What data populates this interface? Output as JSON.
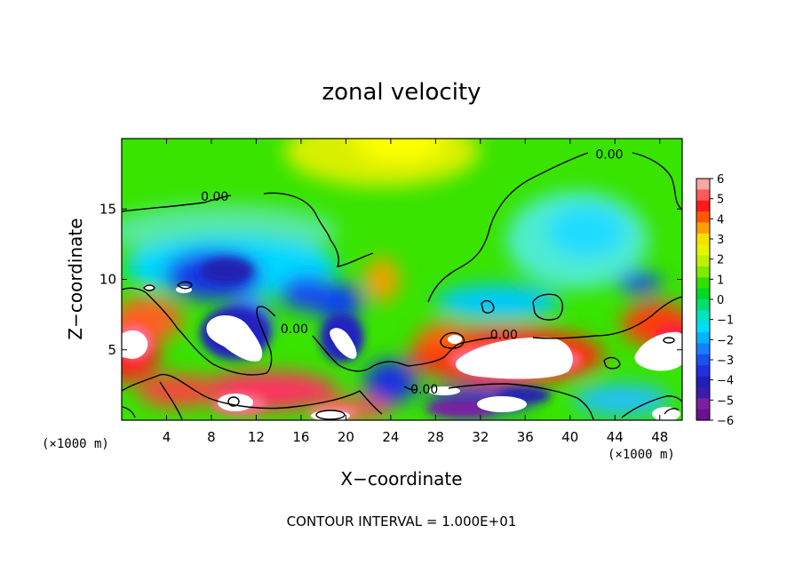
{
  "chart_data": {
    "type": "heatmap",
    "title": "zonal velocity",
    "xlabel": "X−coordinate",
    "ylabel": "Z−coordinate",
    "x_unit_left": "(×1000 m)",
    "x_unit_right": "(×1000 m)",
    "xlim": [
      0,
      50
    ],
    "ylim": [
      0,
      20
    ],
    "x_ticks": [
      4,
      8,
      12,
      16,
      20,
      24,
      28,
      32,
      36,
      40,
      44,
      48
    ],
    "y_ticks": [
      5,
      10,
      15
    ],
    "colorbar_ticks": [
      "6",
      "5",
      "4",
      "3",
      "2",
      "1",
      "0",
      "−1",
      "−2",
      "−3",
      "−4",
      "−5",
      "−6"
    ],
    "colorbar_range": [
      -6,
      6
    ],
    "zero_contour_label": "0.00",
    "contour_labels": [
      {
        "text": "0.00",
        "x": 8.3,
        "y": 15.9
      },
      {
        "text": "0.00",
        "x": 43.5,
        "y": 18.9
      },
      {
        "text": "0.00",
        "x": 15.4,
        "y": 6.5
      },
      {
        "text": "0.00",
        "x": 34.1,
        "y": 6.1
      },
      {
        "text": "0.00",
        "x": 27.0,
        "y": 2.2
      }
    ],
    "footer": "CONTOUR INTERVAL = 1.000E+01",
    "colors": {
      "neg6": "#7b1fa2",
      "neg5": "#2020b0",
      "neg4": "#1c3cf0",
      "neg2": "#00e4ff",
      "zero": "#28e000",
      "pos2": "#f0f000",
      "pos4": "#ff2020",
      "pos6": "#f7a6a6"
    }
  }
}
